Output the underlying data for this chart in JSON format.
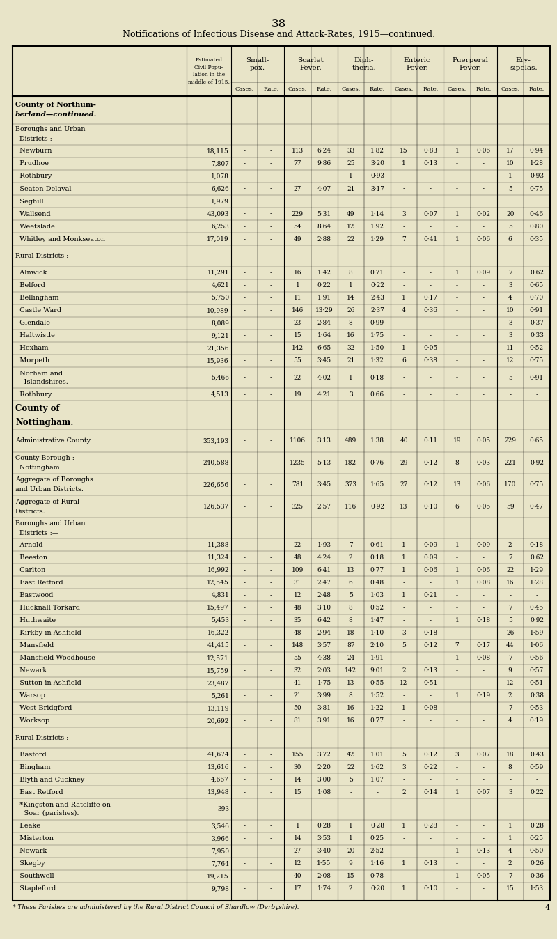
{
  "page_number": "38",
  "title": "Notifications of Infectious Disease and Attack-Rates, 1915—continued.",
  "bg_color": "#e8e4c8",
  "col_headers": [
    "Small-\npox.",
    "Scarlet\nFever.",
    "Diph-\ntheria.",
    "Enteric\nFever.",
    "Puerperal\nFever.",
    "Ery-\nsipelas."
  ],
  "sub_headers": [
    "Cases.",
    "Rate.",
    "Cases.",
    "Rate.",
    "Cases.",
    "Rate.",
    "Cases.",
    "Rate.",
    "Cases.",
    "Rate.",
    "Cases.",
    "Rate."
  ],
  "rows": [
    {
      "label": "County of Northum-\nberland—continued.",
      "pop": "",
      "data": [
        "",
        "",
        "",
        "",
        "",
        "",
        "",
        "",
        "",
        "",
        "",
        ""
      ],
      "type": "section_header"
    },
    {
      "label": "Boroughs and Urban\n  Districts :—",
      "pop": "",
      "data": [
        "",
        "",
        "",
        "",
        "",
        "",
        "",
        "",
        "",
        "",
        "",
        ""
      ],
      "type": "subheader"
    },
    {
      "label": "  Newburn",
      "pop": "18,115",
      "data": [
        "-",
        "-",
        "113",
        "6·24",
        "33",
        "1·82",
        "15",
        "0·83",
        "1",
        "0·06",
        "17",
        "0·94"
      ],
      "type": "data"
    },
    {
      "label": "  Prudhoe",
      "pop": "7,807",
      "data": [
        "-",
        "-",
        "77",
        "9·86",
        "25",
        "3·20",
        "1",
        "0·13",
        "-",
        "-",
        "10",
        "1·28"
      ],
      "type": "data"
    },
    {
      "label": "  Rothbury",
      "pop": "1,078",
      "data": [
        "-",
        "-",
        "-",
        "-",
        "1",
        "0·93",
        "-",
        "-",
        "-",
        "-",
        "1",
        "0·93"
      ],
      "type": "data"
    },
    {
      "label": "  Seaton Delaval",
      "pop": "6,626",
      "data": [
        "-",
        "-",
        "27",
        "4·07",
        "21",
        "3·17",
        "-",
        "-",
        "-",
        "-",
        "5",
        "0·75"
      ],
      "type": "data"
    },
    {
      "label": "  Seghill",
      "pop": "1,979",
      "data": [
        "-",
        "-",
        "-",
        "-",
        "-",
        "-",
        "-",
        "-",
        "-",
        "-",
        "-",
        "-"
      ],
      "type": "data"
    },
    {
      "label": "  Wallsend",
      "pop": "43,093",
      "data": [
        "-",
        "-",
        "229",
        "5·31",
        "49",
        "1·14",
        "3",
        "0·07",
        "1",
        "0·02",
        "20",
        "0·46"
      ],
      "type": "data"
    },
    {
      "label": "  Weetslade",
      "pop": "6,253",
      "data": [
        "-",
        "-",
        "54",
        "8·64",
        "12",
        "1·92",
        "-",
        "-",
        "-",
        "-",
        "5",
        "0·80"
      ],
      "type": "data"
    },
    {
      "label": "  Whitley and Monkseaton",
      "pop": "17,019",
      "data": [
        "-",
        "-",
        "49",
        "2·88",
        "22",
        "1·29",
        "7",
        "0·41",
        "1",
        "0·06",
        "6",
        "0·35"
      ],
      "type": "data"
    },
    {
      "label": "Rural Districts :—",
      "pop": "",
      "data": [
        "",
        "",
        "",
        "",
        "",
        "",
        "",
        "",
        "",
        "",
        "",
        ""
      ],
      "type": "subheader"
    },
    {
      "label": "  Alnwick",
      "pop": "11,291",
      "data": [
        "-",
        "-",
        "16",
        "1·42",
        "8",
        "0·71",
        "-",
        "-",
        "1",
        "0·09",
        "7",
        "0·62"
      ],
      "type": "data"
    },
    {
      "label": "  Belford",
      "pop": "4,621",
      "data": [
        "-",
        "-",
        "1",
        "0·22",
        "1",
        "0·22",
        "-",
        "-",
        "-",
        "-",
        "3",
        "0·65"
      ],
      "type": "data"
    },
    {
      "label": "  Bellingham",
      "pop": "5,750",
      "data": [
        "-",
        "-",
        "11",
        "1·91",
        "14",
        "2·43",
        "1",
        "0·17",
        "-",
        "-",
        "4",
        "0·70"
      ],
      "type": "data"
    },
    {
      "label": "  Castle Ward",
      "pop": "10,989",
      "data": [
        "-",
        "-",
        "146",
        "13·29",
        "26",
        "2·37",
        "4",
        "0·36",
        "-",
        "-",
        "10",
        "0·91"
      ],
      "type": "data"
    },
    {
      "label": "  Glendale",
      "pop": "8,089",
      "data": [
        "-",
        "-",
        "23",
        "2·84",
        "8",
        "0·99",
        "-",
        "-",
        "-",
        "-",
        "3",
        "0·37"
      ],
      "type": "data"
    },
    {
      "label": "  Haltwistle",
      "pop": "9,121",
      "data": [
        "-",
        "-",
        "15",
        "1·64",
        "16",
        "1·75",
        "-",
        "-",
        "-",
        "-",
        "3",
        "0·33"
      ],
      "type": "data"
    },
    {
      "label": "  Hexham",
      "pop": "21,356",
      "data": [
        "-",
        "-",
        "142",
        "6·65",
        "32",
        "1·50",
        "1",
        "0·05",
        "-",
        "-",
        "11",
        "0·52"
      ],
      "type": "data"
    },
    {
      "label": "  Morpeth",
      "pop": "15,936",
      "data": [
        "-",
        "-",
        "55",
        "3·45",
        "21",
        "1·32",
        "6",
        "0·38",
        "-",
        "-",
        "12",
        "0·75"
      ],
      "type": "data"
    },
    {
      "label": "  Norham and\n    Islandshires.",
      "pop": "5,466",
      "data": [
        "-",
        "-",
        "22",
        "4·02",
        "1",
        "0·18",
        "-",
        "-",
        "-",
        "-",
        "5",
        "0·91"
      ],
      "type": "data"
    },
    {
      "label": "  Rothbury",
      "pop": "4,513",
      "data": [
        "-",
        "-",
        "19",
        "4·21",
        "3",
        "0·66",
        "-",
        "-",
        "-",
        "-",
        "-",
        "-"
      ],
      "type": "data"
    },
    {
      "label": "County of\nNottingham.",
      "pop": "",
      "data": [
        "",
        "",
        "",
        "",
        "",
        "",
        "",
        "",
        "",
        "",
        "",
        ""
      ],
      "type": "county_header"
    },
    {
      "label": "Administrative County",
      "pop": "353,193",
      "data": [
        "-",
        "-",
        "1106",
        "3·13",
        "489",
        "1·38",
        "40",
        "0·11",
        "19",
        "0·05",
        "229",
        "0·65"
      ],
      "type": "aggregate"
    },
    {
      "label": "County Borough :—\n  Nottingham",
      "pop": "240,588",
      "data": [
        "-",
        "-",
        "1235",
        "5·13",
        "182",
        "0·76",
        "29",
        "0·12",
        "8",
        "0·03",
        "221",
        "0·92"
      ],
      "type": "aggregate"
    },
    {
      "label": "Aggregate of Boroughs\nand Urban Districts.",
      "pop": "226,656",
      "data": [
        "-",
        "-",
        "781",
        "3·45",
        "373",
        "1·65",
        "27",
        "0·12",
        "13",
        "0·06",
        "170",
        "0·75"
      ],
      "type": "aggregate"
    },
    {
      "label": "Aggregate of Rural\nDistricts.",
      "pop": "126,537",
      "data": [
        "-",
        "-",
        "325",
        "2·57",
        "116",
        "0·92",
        "13",
        "0·10",
        "6",
        "0·05",
        "59",
        "0·47"
      ],
      "type": "aggregate"
    },
    {
      "label": "Boroughs and Urban\n  Districts :—",
      "pop": "",
      "data": [
        "",
        "",
        "",
        "",
        "",
        "",
        "",
        "",
        "",
        "",
        "",
        ""
      ],
      "type": "subheader"
    },
    {
      "label": "  Arnold",
      "pop": "11,388",
      "data": [
        "-",
        "-",
        "22",
        "1·93",
        "7",
        "0·61",
        "1",
        "0·09",
        "1",
        "0·09",
        "2",
        "0·18"
      ],
      "type": "data"
    },
    {
      "label": "  Beeston",
      "pop": "11,324",
      "data": [
        "-",
        "-",
        "48",
        "4·24",
        "2",
        "0·18",
        "1",
        "0·09",
        "-",
        "-",
        "7",
        "0·62"
      ],
      "type": "data"
    },
    {
      "label": "  Carlton",
      "pop": "16,992",
      "data": [
        "-",
        "-",
        "109",
        "6·41",
        "13",
        "0·77",
        "1",
        "0·06",
        "1",
        "0·06",
        "22",
        "1·29"
      ],
      "type": "data"
    },
    {
      "label": "  East Retford",
      "pop": "12,545",
      "data": [
        "-",
        "-",
        "31",
        "2·47",
        "6",
        "0·48",
        "-",
        "-",
        "1",
        "0·08",
        "16",
        "1·28"
      ],
      "type": "data"
    },
    {
      "label": "  Eastwood",
      "pop": "4,831",
      "data": [
        "-",
        "-",
        "12",
        "2·48",
        "5",
        "1·03",
        "1",
        "0·21",
        "-",
        "-",
        "-",
        "-"
      ],
      "type": "data"
    },
    {
      "label": "  Hucknall Torkard",
      "pop": "15,497",
      "data": [
        "-",
        "-",
        "48",
        "3·10",
        "8",
        "0·52",
        "-",
        "-",
        "-",
        "-",
        "7",
        "0·45"
      ],
      "type": "data"
    },
    {
      "label": "  Huthwaite",
      "pop": "5,453",
      "data": [
        "-",
        "-",
        "35",
        "6·42",
        "8",
        "1·47",
        "-",
        "-",
        "1",
        "0·18",
        "5",
        "0·92"
      ],
      "type": "data"
    },
    {
      "label": "  Kirkby in Ashfield",
      "pop": "16,322",
      "data": [
        "-",
        "-",
        "48",
        "2·94",
        "18",
        "1·10",
        "3",
        "0·18",
        "-",
        "-",
        "26",
        "1·59"
      ],
      "type": "data"
    },
    {
      "label": "  Mansfield",
      "pop": "41,415",
      "data": [
        "-",
        "-",
        "148",
        "3·57",
        "87",
        "2·10",
        "5",
        "0·12",
        "7",
        "0·17",
        "44",
        "1·06"
      ],
      "type": "data"
    },
    {
      "label": "  Mansfield Woodhouse",
      "pop": "12,571",
      "data": [
        "-",
        "-",
        "55",
        "4·38",
        "24",
        "1·91",
        "-",
        "-",
        "1",
        "0·08",
        "7",
        "0·56"
      ],
      "type": "data"
    },
    {
      "label": "  Newark",
      "pop": "15,759",
      "data": [
        "-",
        "-",
        "32",
        "2·03",
        "142",
        "9·01",
        "2",
        "0·13",
        "-",
        "-",
        "9",
        "0·57"
      ],
      "type": "data"
    },
    {
      "label": "  Sutton in Ashfield",
      "pop": "23,487",
      "data": [
        "-",
        "-",
        "41",
        "1·75",
        "13",
        "0·55",
        "12",
        "0·51",
        "-",
        "-",
        "12",
        "0·51"
      ],
      "type": "data"
    },
    {
      "label": "  Warsop",
      "pop": "5,261",
      "data": [
        "-",
        "-",
        "21",
        "3·99",
        "8",
        "1·52",
        "-",
        "-",
        "1",
        "0·19",
        "2",
        "0·38"
      ],
      "type": "data"
    },
    {
      "label": "  West Bridgford",
      "pop": "13,119",
      "data": [
        "-",
        "-",
        "50",
        "3·81",
        "16",
        "1·22",
        "1",
        "0·08",
        "-",
        "-",
        "7",
        "0·53"
      ],
      "type": "data"
    },
    {
      "label": "  Worksop",
      "pop": "20,692",
      "data": [
        "-",
        "-",
        "81",
        "3·91",
        "16",
        "0·77",
        "-",
        "-",
        "-",
        "-",
        "4",
        "0·19"
      ],
      "type": "data"
    },
    {
      "label": "Rural Districts :—",
      "pop": "",
      "data": [
        "",
        "",
        "",
        "",
        "",
        "",
        "",
        "",
        "",
        "",
        "",
        ""
      ],
      "type": "subheader"
    },
    {
      "label": "  Basford",
      "pop": "41,674",
      "data": [
        "-",
        "-",
        "155",
        "3·72",
        "42",
        "1·01",
        "5",
        "0·12",
        "3",
        "0·07",
        "18",
        "0·43"
      ],
      "type": "data"
    },
    {
      "label": "  Bingham",
      "pop": "13,616",
      "data": [
        "-",
        "-",
        "30",
        "2·20",
        "22",
        "1·62",
        "3",
        "0·22",
        "-",
        "-",
        "8",
        "0·59"
      ],
      "type": "data"
    },
    {
      "label": "  Blyth and Cuckney",
      "pop": "4,667",
      "data": [
        "-",
        "-",
        "14",
        "3·00",
        "5",
        "1·07",
        "-",
        "-",
        "-",
        "-",
        "-",
        "-"
      ],
      "type": "data"
    },
    {
      "label": "  East Retford",
      "pop": "13,948",
      "data": [
        "-",
        "-",
        "15",
        "1·08",
        "-",
        "-",
        "2",
        "0·14",
        "1",
        "0·07",
        "3",
        "0·22"
      ],
      "type": "data"
    },
    {
      "label": "  *Kingston and Ratcliffe on\n    Soar (parishes).",
      "pop": "393",
      "data": [
        "",
        "",
        "",
        "",
        "",
        "",
        "",
        "",
        "",
        "",
        "",
        ""
      ],
      "type": "data"
    },
    {
      "label": "  Leake",
      "pop": "3,546",
      "data": [
        "-",
        "-",
        "1",
        "0·28",
        "1",
        "0·28",
        "1",
        "0·28",
        "-",
        "-",
        "1",
        "0·28"
      ],
      "type": "data"
    },
    {
      "label": "  Misterton",
      "pop": "3,966",
      "data": [
        "-",
        "-",
        "14",
        "3·53",
        "1",
        "0·25",
        "-",
        "-",
        "-",
        "-",
        "1",
        "0·25"
      ],
      "type": "data"
    },
    {
      "label": "  Newark",
      "pop": "7,950",
      "data": [
        "-",
        "-",
        "27",
        "3·40",
        "20",
        "2·52",
        "-",
        "-",
        "1",
        "0·13",
        "4",
        "0·50"
      ],
      "type": "data"
    },
    {
      "label": "  Skegby",
      "pop": "7,764",
      "data": [
        "-",
        "-",
        "12",
        "1·55",
        "9",
        "1·16",
        "1",
        "0·13",
        "-",
        "-",
        "2",
        "0·26"
      ],
      "type": "data"
    },
    {
      "label": "  Southwell",
      "pop": "19,215",
      "data": [
        "-",
        "-",
        "40",
        "2·08",
        "15",
        "0·78",
        "-",
        "-",
        "1",
        "0·05",
        "7",
        "0·36"
      ],
      "type": "data"
    },
    {
      "label": "  Stapleford",
      "pop": "9,798",
      "data": [
        "-",
        "-",
        "17",
        "1·74",
        "2",
        "0·20",
        "1",
        "0·10",
        "-",
        "-",
        "15",
        "1·53"
      ],
      "type": "data"
    }
  ],
  "footnote": "* These Parishes are administered by the Rural District Council of Shardlow (Derbyshire).",
  "footnote2": "4"
}
